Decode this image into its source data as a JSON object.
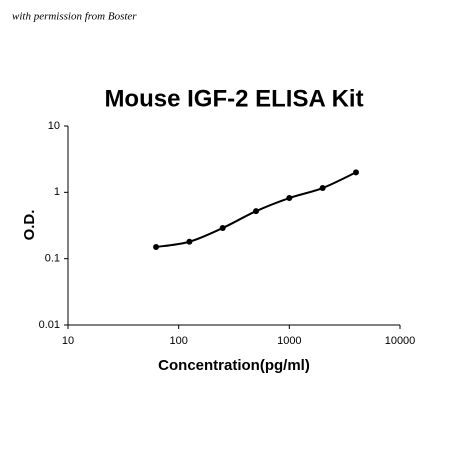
{
  "chart_data": {
    "type": "scatter",
    "title": "Mouse IGF-2 ELISA Kit",
    "annotation": "with permission from Boster",
    "x_label": "Concentration(pg/ml)",
    "y_label": "O.D.",
    "x_scale": "log",
    "y_scale": "log",
    "xlim": [
      10,
      10000
    ],
    "xticks": [
      10,
      100,
      1000,
      10000
    ],
    "ylim": [
      0.01,
      10
    ],
    "yticks": [
      0.01,
      0.1,
      1,
      10
    ],
    "grid": false,
    "color": "#000000",
    "x": [
      62.5,
      125,
      250,
      500,
      1000,
      2000,
      4000
    ],
    "values": [
      0.15,
      0.18,
      0.29,
      0.52,
      0.82,
      1.16,
      2.0
    ]
  }
}
